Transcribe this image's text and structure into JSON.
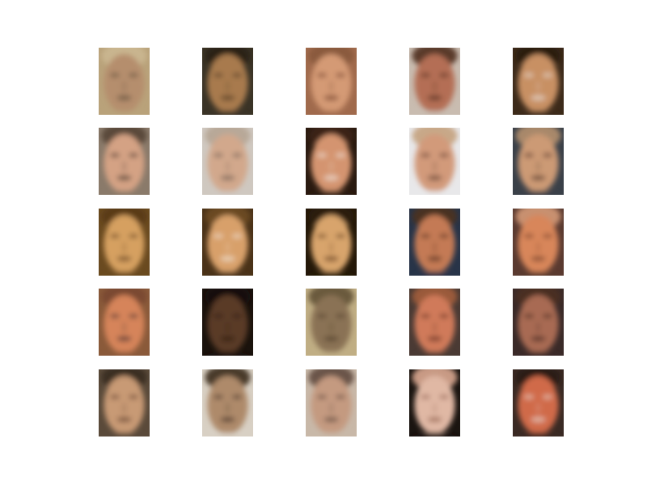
{
  "figure": {
    "rows": 5,
    "cols": 5,
    "thumbnails": [
      {
        "bg": "#b9a27a",
        "skin": "#b58e6d",
        "hair": "#c9b58f",
        "dark": "#5a4a38"
      },
      {
        "bg": "#3a3326",
        "skin": "#a87a4e",
        "hair": "#2a2318",
        "dark": "#4a3520"
      },
      {
        "bg": "#a06a4c",
        "skin": "#d49a74",
        "hair": "#8a5a3c",
        "dark": "#6a3a26"
      },
      {
        "bg": "#c9bcb0",
        "skin": "#b46e54",
        "hair": "#5a3a2a",
        "dark": "#4a2a1e"
      },
      {
        "bg": "#3c2a1a",
        "skin": "#c89064",
        "hair": "#2a1a10",
        "dark": "#e8e0d8"
      },
      {
        "bg": "#8a7a6a",
        "skin": "#d4a284",
        "hair": "#5a4a3a",
        "dark": "#3a2e26"
      },
      {
        "bg": "#cfc8c0",
        "skin": "#d2a88c",
        "hair": "#b8a898",
        "dark": "#6a5a50"
      },
      {
        "bg": "#2a1a10",
        "skin": "#d49470",
        "hair": "#3a2418",
        "dark": "#f0e8e0"
      },
      {
        "bg": "#e8e8ea",
        "skin": "#d29a7a",
        "hair": "#c8a888",
        "dark": "#5a3a2c"
      },
      {
        "bg": "#3a4048",
        "skin": "#cc9a74",
        "hair": "#a8886a",
        "dark": "#4a3026"
      },
      {
        "bg": "#6a4a20",
        "skin": "#d6a060",
        "hair": "#5a3a18",
        "dark": "#5a3a1e"
      },
      {
        "bg": "#4a3218",
        "skin": "#d8a06a",
        "hair": "#6a4a24",
        "dark": "#f2e6d8"
      },
      {
        "bg": "#241808",
        "skin": "#d8a46c",
        "hair": "#2a1c0a",
        "dark": "#5a3418"
      },
      {
        "bg": "#283448",
        "skin": "#c47a54",
        "hair": "#4a3024",
        "dark": "#4a281a"
      },
      {
        "bg": "#5a3a30",
        "skin": "#d8865a",
        "hair": "#c89070",
        "dark": "#6a3a26"
      },
      {
        "bg": "#8a5a3a",
        "skin": "#d6845a",
        "hair": "#7a4a30",
        "dark": "#3a2a30"
      },
      {
        "bg": "#1a120c",
        "skin": "#5a3a26",
        "hair": "#140e0a",
        "dark": "#2a1a10"
      },
      {
        "bg": "#c0ae84",
        "skin": "#8a7254",
        "hair": "#6a5a3c",
        "dark": "#4a3a28"
      },
      {
        "bg": "#4a3a34",
        "skin": "#d07a5a",
        "hair": "#9a5a3a",
        "dark": "#5a2a1e"
      },
      {
        "bg": "#3a2a28",
        "skin": "#a86a52",
        "hair": "#4a2e24",
        "dark": "#3a221a"
      },
      {
        "bg": "#5a4a3a",
        "skin": "#c89a74",
        "hair": "#3a2e24",
        "dark": "#5a3a2a"
      },
      {
        "bg": "#d8d0c4",
        "skin": "#ae8a6a",
        "hair": "#4a3a2a",
        "dark": "#3a2a20"
      },
      {
        "bg": "#c8b8a8",
        "skin": "#c49a80",
        "hair": "#6a5448",
        "dark": "#5a4438"
      },
      {
        "bg": "#1a1410",
        "skin": "#e0b8a4",
        "hair": "#c89a84",
        "dark": "#8a5a48"
      },
      {
        "bg": "#3a2a24",
        "skin": "#d06a4a",
        "hair": "#2a1a14",
        "dark": "#e8d8d0"
      }
    ]
  }
}
